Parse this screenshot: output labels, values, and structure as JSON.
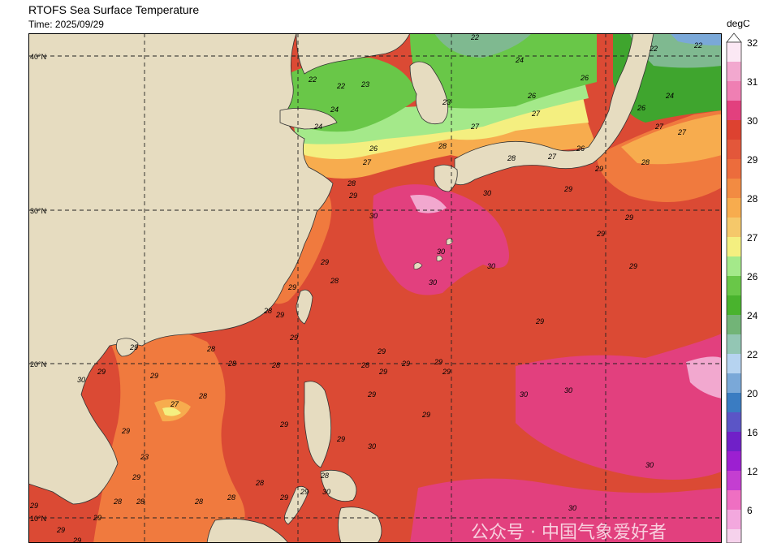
{
  "title": "RTOFS Sea Surface Temperature",
  "time_label": "Time: 2025/09/29",
  "colorbar": {
    "unit": "degC",
    "ticks": [
      "32",
      "31",
      "30",
      "29",
      "28",
      "27",
      "26",
      "24",
      "22",
      "20",
      "16",
      "12",
      "6"
    ],
    "colors": {
      "32": "#fbe8f4",
      "31": "#f2a8cf",
      "30": "#e2407e",
      "29": "#db4a34",
      "28": "#f07a3e",
      "27": "#f7ac4e",
      "26": "#f4ef80",
      "25": "#a4e98a",
      "24": "#69c748",
      "23": "#3fa52e",
      "22": "#7fb990",
      "21": "#a4c8d8",
      "20": "#b6d3f0",
      "18": "#7aa8d8",
      "16": "#3a7cc2",
      "14": "#5b55c6",
      "12": "#8a1fd1",
      "10": "#c43ed1",
      "8": "#e04dc7",
      "6": "#ef6fc2",
      "4": "#f3a8de"
    }
  },
  "map": {
    "ocean_color": "#db4a34",
    "land_color": "#e6dcc0",
    "lat_labels": [
      "40°N",
      "30°N",
      "20°N",
      "10°N"
    ]
  },
  "contour_labels": [
    "22",
    "23",
    "24",
    "25",
    "26",
    "27",
    "28",
    "29",
    "30"
  ],
  "watermark": "公众号 · 中国气象爱好者"
}
